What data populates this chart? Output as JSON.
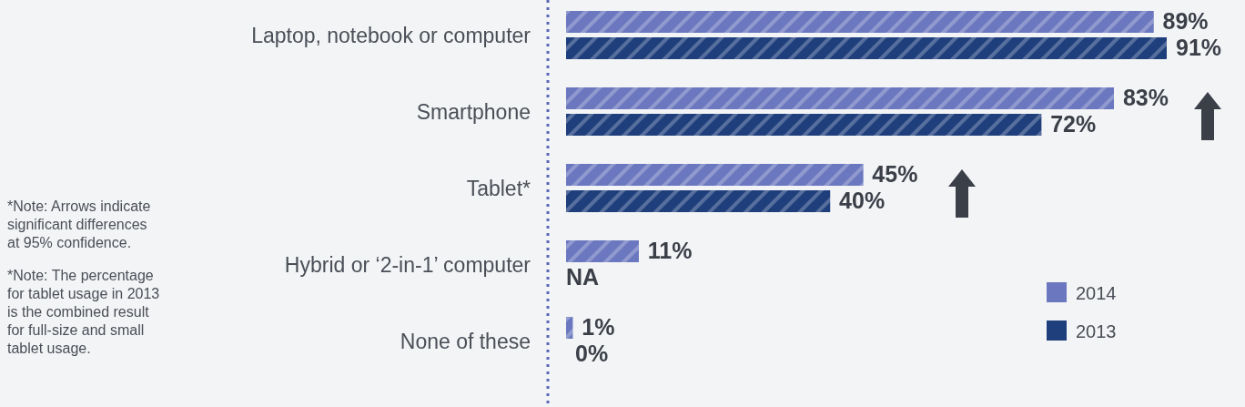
{
  "chart_data": {
    "type": "bar",
    "orientation": "horizontal",
    "categories": [
      "Laptop, notebook or computer",
      "Smartphone",
      "Tablet*",
      "Hybrid or ‘2-in-1’ computer",
      "None of these"
    ],
    "series": [
      {
        "name": "2014",
        "color": "#6b78bf",
        "values": [
          89,
          83,
          45,
          11,
          1
        ],
        "value_labels": [
          "89%",
          "83%",
          "45%",
          "11%",
          "1%"
        ]
      },
      {
        "name": "2013",
        "color": "#1f3f7c",
        "values": [
          91,
          72,
          40,
          null,
          0
        ],
        "value_labels": [
          "91%",
          "72%",
          "40%",
          "NA",
          "0%"
        ]
      }
    ],
    "legend": "bottom right",
    "annotations": [
      "*Note: Arrows indicate significant differences at 95% confidence.",
      "*Note: The percentage for tablet usage in 2013 is the combined result for full-size and small tablet usage."
    ]
  }
}
